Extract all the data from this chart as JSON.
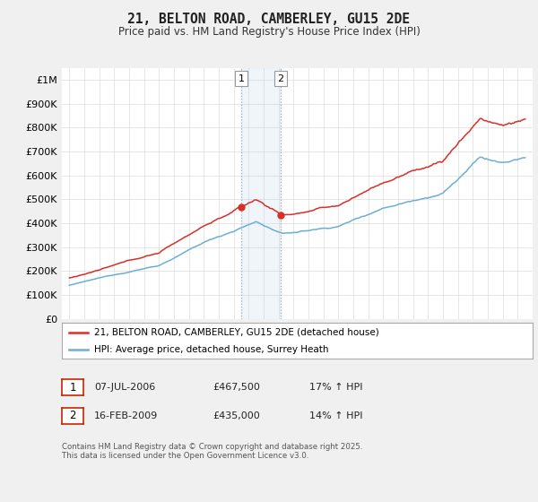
{
  "title": "21, BELTON ROAD, CAMBERLEY, GU15 2DE",
  "subtitle": "Price paid vs. HM Land Registry's House Price Index (HPI)",
  "yticks": [
    0,
    100000,
    200000,
    300000,
    400000,
    500000,
    600000,
    700000,
    800000,
    900000,
    1000000
  ],
  "ytick_labels": [
    "£0",
    "£100K",
    "£200K",
    "£300K",
    "£400K",
    "£500K",
    "£600K",
    "£700K",
    "£800K",
    "£900K",
    "£1M"
  ],
  "x_start_year": 1995,
  "x_end_year": 2025,
  "hpi_color": "#6baed6",
  "price_color": "#d73027",
  "marker1_x": 2006.52,
  "marker1_y": 467500,
  "marker2_x": 2009.12,
  "marker2_y": 435000,
  "marker1_label": "1",
  "marker2_label": "2",
  "legend_line1": "21, BELTON ROAD, CAMBERLEY, GU15 2DE (detached house)",
  "legend_line2": "HPI: Average price, detached house, Surrey Heath",
  "table_row1": [
    "1",
    "07-JUL-2006",
    "£467,500",
    "17% ↑ HPI"
  ],
  "table_row2": [
    "2",
    "16-FEB-2009",
    "£435,000",
    "14% ↑ HPI"
  ],
  "footnote": "Contains HM Land Registry data © Crown copyright and database right 2025.\nThis data is licensed under the Open Government Licence v3.0.",
  "bg_color": "#f0f0f0",
  "plot_bg_color": "#ffffff",
  "shade_x1": 2006.52,
  "shade_x2": 2009.12,
  "ylim": [
    0,
    1050000
  ],
  "xlim": [
    1994.5,
    2026.0
  ]
}
